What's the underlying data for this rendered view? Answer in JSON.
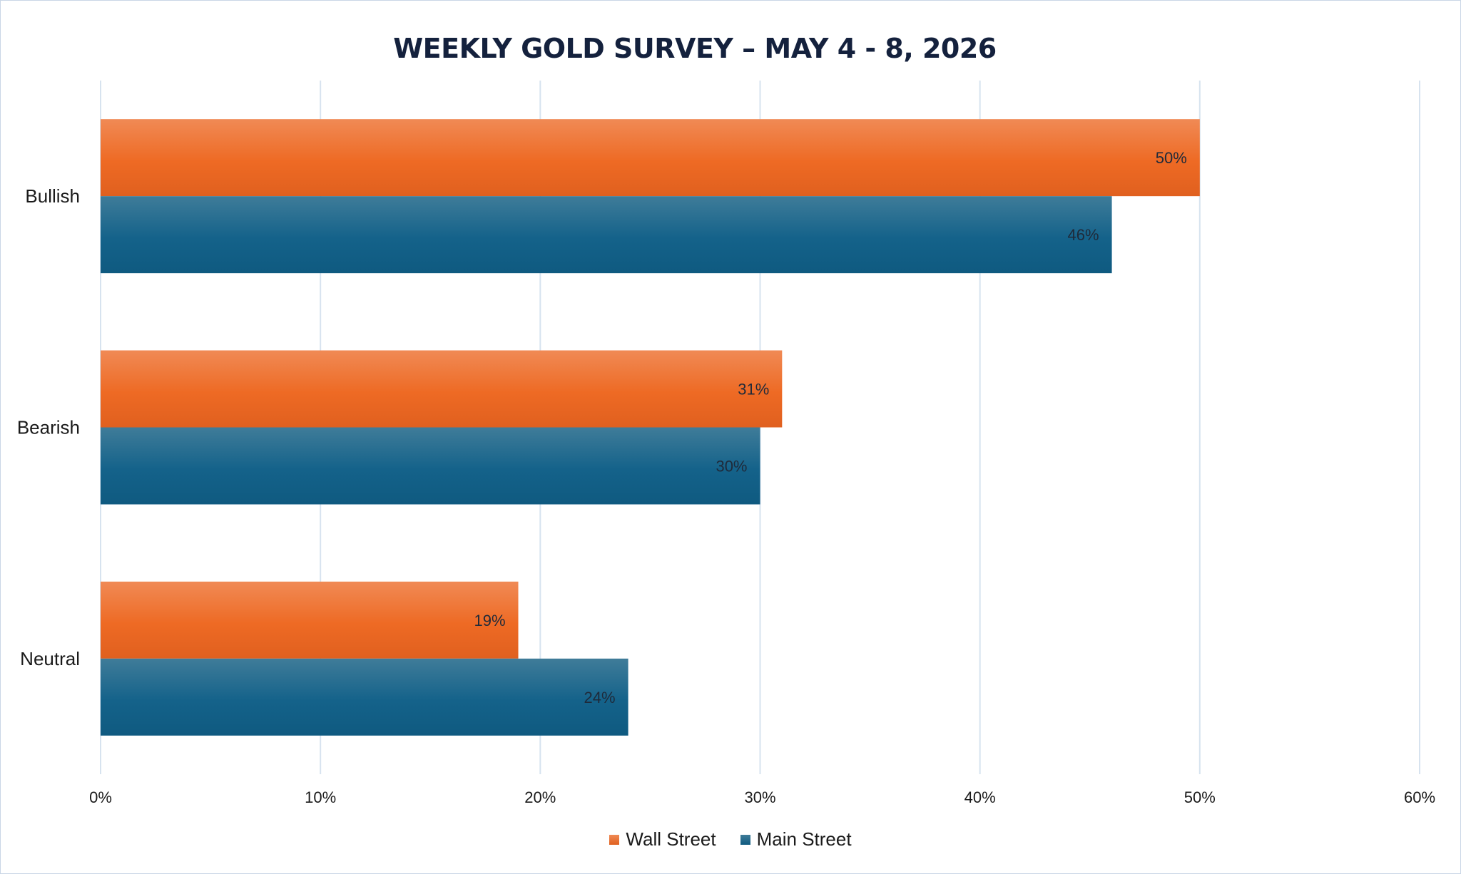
{
  "chart_data": {
    "type": "bar",
    "orientation": "horizontal",
    "title": "WEEKLY GOLD SURVEY – MAY 4 - 8, 2026",
    "categories": [
      "Bullish",
      "Bearish",
      "Neutral"
    ],
    "series": [
      {
        "name": "Wall Street",
        "values": [
          50,
          31,
          19
        ],
        "labels": [
          "50%",
          "31%",
          "19%"
        ],
        "color": "#ee6a24"
      },
      {
        "name": "Main Street",
        "values": [
          46,
          30,
          24
        ],
        "labels": [
          "46%",
          "30%",
          "24%"
        ],
        "color": "#14628a"
      }
    ],
    "xlim": [
      0,
      60
    ],
    "xticks": [
      0,
      10,
      20,
      30,
      40,
      50,
      60
    ],
    "xtick_labels": [
      "0%",
      "10%",
      "20%",
      "30%",
      "40%",
      "50%",
      "60%"
    ],
    "grid": "vertical",
    "legend": "bottom"
  },
  "colors": {
    "gridline": "#d7e3ef",
    "border": "#c9d6e6",
    "title": "#14213d"
  }
}
